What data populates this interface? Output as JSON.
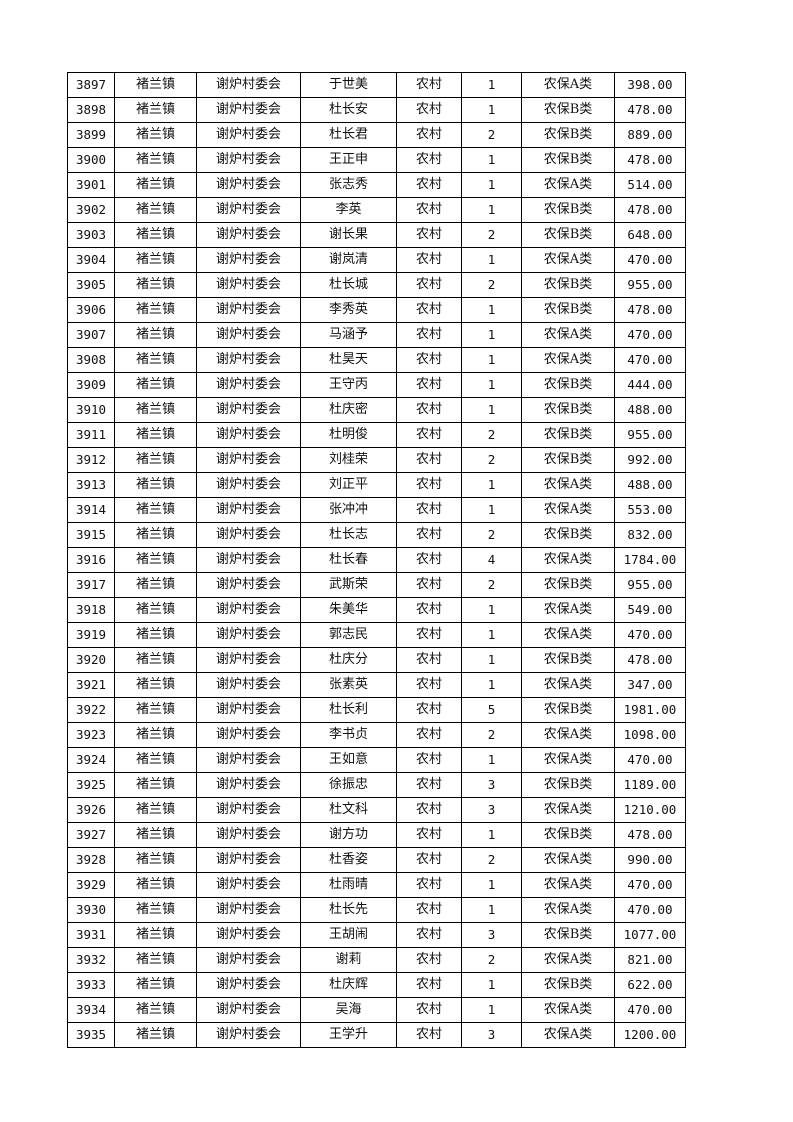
{
  "table": {
    "rows": [
      [
        "3897",
        "褚兰镇",
        "谢炉村委会",
        "于世美",
        "农村",
        "1",
        "农保A类",
        "398.00"
      ],
      [
        "3898",
        "褚兰镇",
        "谢炉村委会",
        "杜长安",
        "农村",
        "1",
        "农保B类",
        "478.00"
      ],
      [
        "3899",
        "褚兰镇",
        "谢炉村委会",
        "杜长君",
        "农村",
        "2",
        "农保B类",
        "889.00"
      ],
      [
        "3900",
        "褚兰镇",
        "谢炉村委会",
        "王正申",
        "农村",
        "1",
        "农保B类",
        "478.00"
      ],
      [
        "3901",
        "褚兰镇",
        "谢炉村委会",
        "张志秀",
        "农村",
        "1",
        "农保A类",
        "514.00"
      ],
      [
        "3902",
        "褚兰镇",
        "谢炉村委会",
        "李英",
        "农村",
        "1",
        "农保B类",
        "478.00"
      ],
      [
        "3903",
        "褚兰镇",
        "谢炉村委会",
        "谢长果",
        "农村",
        "2",
        "农保B类",
        "648.00"
      ],
      [
        "3904",
        "褚兰镇",
        "谢炉村委会",
        "谢岚清",
        "农村",
        "1",
        "农保A类",
        "470.00"
      ],
      [
        "3905",
        "褚兰镇",
        "谢炉村委会",
        "杜长城",
        "农村",
        "2",
        "农保B类",
        "955.00"
      ],
      [
        "3906",
        "褚兰镇",
        "谢炉村委会",
        "李秀英",
        "农村",
        "1",
        "农保B类",
        "478.00"
      ],
      [
        "3907",
        "褚兰镇",
        "谢炉村委会",
        "马涵予",
        "农村",
        "1",
        "农保A类",
        "470.00"
      ],
      [
        "3908",
        "褚兰镇",
        "谢炉村委会",
        "杜昊天",
        "农村",
        "1",
        "农保A类",
        "470.00"
      ],
      [
        "3909",
        "褚兰镇",
        "谢炉村委会",
        "王守丙",
        "农村",
        "1",
        "农保B类",
        "444.00"
      ],
      [
        "3910",
        "褚兰镇",
        "谢炉村委会",
        "杜庆密",
        "农村",
        "1",
        "农保B类",
        "488.00"
      ],
      [
        "3911",
        "褚兰镇",
        "谢炉村委会",
        "杜明俊",
        "农村",
        "2",
        "农保B类",
        "955.00"
      ],
      [
        "3912",
        "褚兰镇",
        "谢炉村委会",
        "刘桂荣",
        "农村",
        "2",
        "农保B类",
        "992.00"
      ],
      [
        "3913",
        "褚兰镇",
        "谢炉村委会",
        "刘正平",
        "农村",
        "1",
        "农保A类",
        "488.00"
      ],
      [
        "3914",
        "褚兰镇",
        "谢炉村委会",
        "张冲冲",
        "农村",
        "1",
        "农保A类",
        "553.00"
      ],
      [
        "3915",
        "褚兰镇",
        "谢炉村委会",
        "杜长志",
        "农村",
        "2",
        "农保B类",
        "832.00"
      ],
      [
        "3916",
        "褚兰镇",
        "谢炉村委会",
        "杜长春",
        "农村",
        "4",
        "农保A类",
        "1784.00"
      ],
      [
        "3917",
        "褚兰镇",
        "谢炉村委会",
        "武斯荣",
        "农村",
        "2",
        "农保B类",
        "955.00"
      ],
      [
        "3918",
        "褚兰镇",
        "谢炉村委会",
        "朱美华",
        "农村",
        "1",
        "农保A类",
        "549.00"
      ],
      [
        "3919",
        "褚兰镇",
        "谢炉村委会",
        "郭志民",
        "农村",
        "1",
        "农保A类",
        "470.00"
      ],
      [
        "3920",
        "褚兰镇",
        "谢炉村委会",
        "杜庆分",
        "农村",
        "1",
        "农保B类",
        "478.00"
      ],
      [
        "3921",
        "褚兰镇",
        "谢炉村委会",
        "张素英",
        "农村",
        "1",
        "农保A类",
        "347.00"
      ],
      [
        "3922",
        "褚兰镇",
        "谢炉村委会",
        "杜长利",
        "农村",
        "5",
        "农保B类",
        "1981.00"
      ],
      [
        "3923",
        "褚兰镇",
        "谢炉村委会",
        "李书贞",
        "农村",
        "2",
        "农保A类",
        "1098.00"
      ],
      [
        "3924",
        "褚兰镇",
        "谢炉村委会",
        "王如意",
        "农村",
        "1",
        "农保A类",
        "470.00"
      ],
      [
        "3925",
        "褚兰镇",
        "谢炉村委会",
        "徐振忠",
        "农村",
        "3",
        "农保B类",
        "1189.00"
      ],
      [
        "3926",
        "褚兰镇",
        "谢炉村委会",
        "杜文科",
        "农村",
        "3",
        "农保A类",
        "1210.00"
      ],
      [
        "3927",
        "褚兰镇",
        "谢炉村委会",
        "谢方功",
        "农村",
        "1",
        "农保B类",
        "478.00"
      ],
      [
        "3928",
        "褚兰镇",
        "谢炉村委会",
        "杜香姿",
        "农村",
        "2",
        "农保A类",
        "990.00"
      ],
      [
        "3929",
        "褚兰镇",
        "谢炉村委会",
        "杜雨晴",
        "农村",
        "1",
        "农保A类",
        "470.00"
      ],
      [
        "3930",
        "褚兰镇",
        "谢炉村委会",
        "杜长先",
        "农村",
        "1",
        "农保A类",
        "470.00"
      ],
      [
        "3931",
        "褚兰镇",
        "谢炉村委会",
        "王胡闹",
        "农村",
        "3",
        "农保B类",
        "1077.00"
      ],
      [
        "3932",
        "褚兰镇",
        "谢炉村委会",
        "谢莉",
        "农村",
        "2",
        "农保A类",
        "821.00"
      ],
      [
        "3933",
        "褚兰镇",
        "谢炉村委会",
        "杜庆辉",
        "农村",
        "1",
        "农保B类",
        "622.00"
      ],
      [
        "3934",
        "褚兰镇",
        "谢炉村委会",
        "吴海",
        "农村",
        "1",
        "农保A类",
        "470.00"
      ],
      [
        "3935",
        "褚兰镇",
        "谢炉村委会",
        "王学升",
        "农村",
        "3",
        "农保A类",
        "1200.00"
      ]
    ]
  }
}
